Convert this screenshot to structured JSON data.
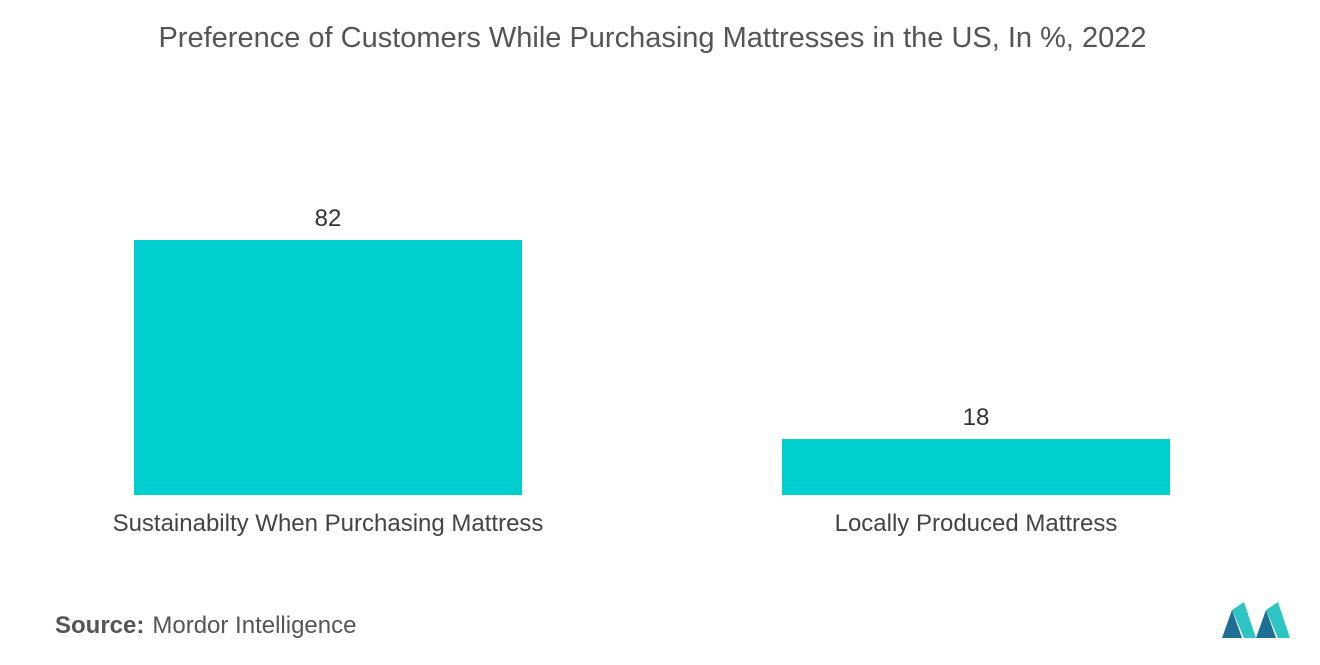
{
  "title": "Preference of Customers While Purchasing Mattresses in the US, In %, 2022",
  "source": {
    "label": "Source:",
    "value": "Mordor Intelligence"
  },
  "colors": {
    "bar": "#00CFCF",
    "text": "#555555",
    "logo_dark": "#1f6f95",
    "logo_light": "#2ec4c4"
  },
  "chart_data": {
    "type": "bar",
    "title": "Preference of Customers While Purchasing Mattresses in the US, In %, 2022",
    "categories": [
      "Sustainabilty When Purchasing Mattress",
      "Locally Produced Mattress"
    ],
    "values": [
      82,
      18
    ],
    "xlabel": "",
    "ylabel": "",
    "ylim": [
      0,
      82
    ],
    "grid": false,
    "legend": "none",
    "data_labels": true
  }
}
